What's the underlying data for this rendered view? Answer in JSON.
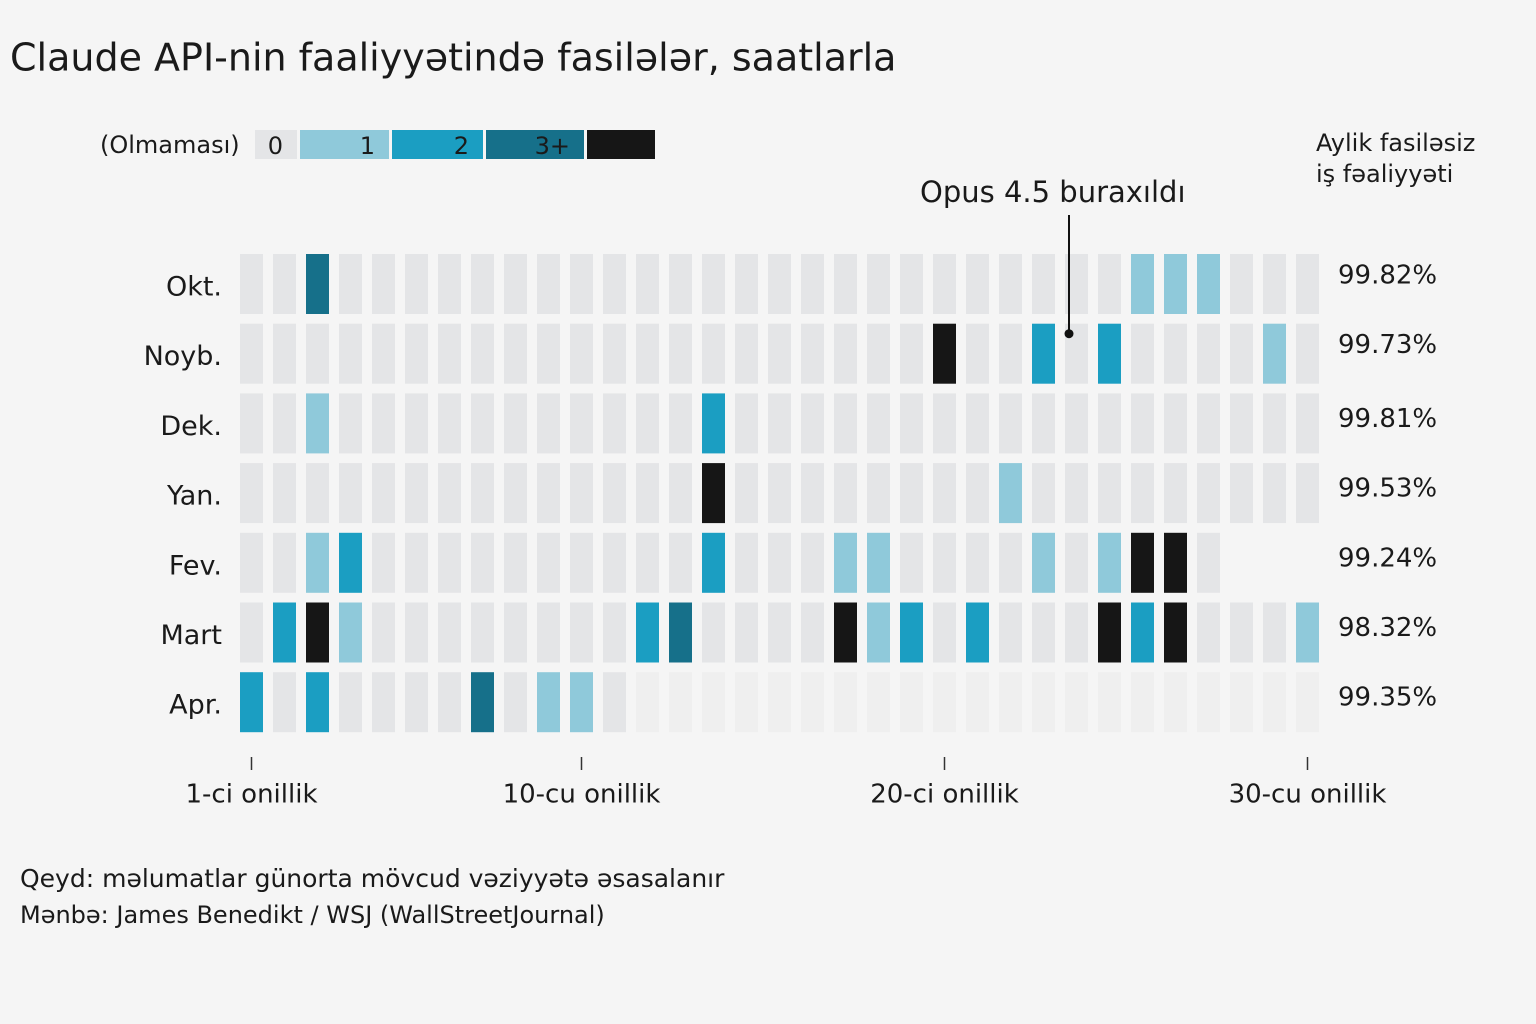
{
  "chart_data": {
    "type": "heatmap",
    "title": "Claude API-nin faaliyyətində fasilələr, saatlarla",
    "legend": {
      "title": "(Olmaması)",
      "levels": [
        {
          "value": 0,
          "label": "0",
          "color": "#e4e5e7"
        },
        {
          "value": 1,
          "label": "1",
          "color": "#8fc9da"
        },
        {
          "value": 2,
          "label": "2",
          "color": "#1b9ec2"
        },
        {
          "value": 3,
          "label": "3+",
          "color": "#16708a"
        },
        {
          "value": 4,
          "label": null,
          "color": "#161616"
        }
      ]
    },
    "categories": [
      "Okt.",
      "Noyb.",
      "Dek.",
      "Yan.",
      "Fev.",
      "Mart",
      "Apr."
    ],
    "values": [
      [
        0,
        0,
        3,
        0,
        0,
        0,
        0,
        0,
        0,
        0,
        0,
        0,
        0,
        0,
        0,
        0,
        0,
        0,
        0,
        0,
        0,
        0,
        0,
        0,
        0,
        0,
        0,
        1,
        1,
        1,
        0,
        0,
        0
      ],
      [
        0,
        0,
        0,
        0,
        0,
        0,
        0,
        0,
        0,
        0,
        0,
        0,
        0,
        0,
        0,
        0,
        0,
        0,
        0,
        0,
        0,
        4,
        0,
        0,
        2,
        0,
        2,
        0,
        0,
        0,
        0,
        1,
        0
      ],
      [
        0,
        0,
        1,
        0,
        0,
        0,
        0,
        0,
        0,
        0,
        0,
        0,
        0,
        0,
        2,
        0,
        0,
        0,
        0,
        0,
        0,
        0,
        0,
        0,
        0,
        0,
        0,
        0,
        0,
        0,
        0,
        0,
        0
      ],
      [
        0,
        0,
        0,
        0,
        0,
        0,
        0,
        0,
        0,
        0,
        0,
        0,
        0,
        0,
        4,
        0,
        0,
        0,
        0,
        0,
        0,
        0,
        0,
        1,
        0,
        0,
        0,
        0,
        0,
        0,
        0,
        0,
        0
      ],
      [
        0,
        0,
        1,
        2,
        0,
        0,
        0,
        0,
        0,
        0,
        0,
        0,
        0,
        0,
        2,
        0,
        0,
        0,
        1,
        1,
        0,
        0,
        0,
        0,
        1,
        0,
        1,
        4,
        4,
        0
      ],
      [
        0,
        2,
        4,
        1,
        0,
        0,
        0,
        0,
        0,
        0,
        0,
        0,
        2,
        3,
        0,
        0,
        0,
        0,
        4,
        1,
        2,
        0,
        2,
        0,
        0,
        0,
        4,
        2,
        4,
        0,
        0,
        0,
        1
      ],
      [
        2,
        0,
        2,
        0,
        0,
        0,
        0,
        3,
        0,
        1,
        1,
        0,
        null,
        null,
        null,
        null,
        null,
        null,
        null,
        null,
        null,
        null,
        null,
        null,
        null,
        null,
        null,
        null,
        null,
        null,
        null,
        null,
        null
      ]
    ],
    "xticks": [
      {
        "value": 0,
        "label": "1-ci onillik"
      },
      {
        "value": 10,
        "label": "10-cu onillik"
      },
      {
        "value": 21,
        "label": "20-ci onillik"
      },
      {
        "value": 32,
        "label": "30-cu onillik"
      }
    ],
    "uptime": {
      "title": [
        "Aylik fasiləsiz",
        "iş fəaliyyəti"
      ],
      "values": [
        99.82,
        99.73,
        99.81,
        99.53,
        99.24,
        98.32,
        99.35
      ],
      "value_labels": [
        "99.82%",
        "99.73%",
        "99.81%",
        "99.53%",
        "99.24%",
        "98.32%",
        "99.35%"
      ]
    },
    "annotation": {
      "text": "Opus 4.5 buraxıldı",
      "row": 1,
      "col": 25
    },
    "note": "Qeyd: məlumatlar günorta mövcud vəziyyətə əsasalanır",
    "source": "Mənbə: James Benedikt / WSJ (WallStreetJournal)"
  }
}
